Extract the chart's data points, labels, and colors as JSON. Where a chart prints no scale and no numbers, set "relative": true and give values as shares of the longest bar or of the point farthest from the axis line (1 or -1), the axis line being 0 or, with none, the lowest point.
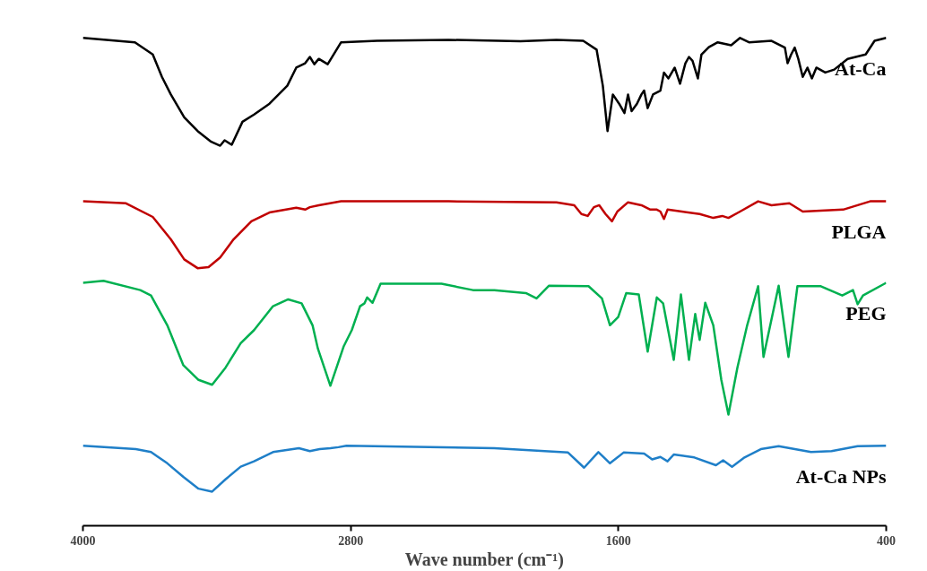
{
  "chart_data": {
    "type": "line",
    "relative": true,
    "xlabel": "Wave number (cm⁻¹)",
    "xlim": [
      4000,
      400
    ],
    "xticks": [
      4000,
      2800,
      1600,
      400
    ],
    "tick_labels": "x",
    "legend": false,
    "grid": false,
    "series": [
      {
        "name": "At-Ca",
        "color": "#000000",
        "x": [
          4000,
          3767,
          3687,
          3646,
          3606,
          3546,
          3486,
          3425,
          3385,
          3365,
          3333,
          3285,
          3233,
          3164,
          3084,
          3044,
          3004,
          2983,
          2963,
          2943,
          2903,
          2843,
          2682,
          2361,
          2039,
          1878,
          1758,
          1698,
          1670,
          1649,
          1625,
          1597,
          1573,
          1557,
          1541,
          1517,
          1497,
          1485,
          1469,
          1445,
          1412,
          1396,
          1376,
          1348,
          1324,
          1300,
          1284,
          1268,
          1244,
          1228,
          1195,
          1155,
          1095,
          1055,
          1015,
          914,
          854,
          842,
          826,
          810,
          794,
          774,
          753,
          733,
          713,
          673,
          633,
          573,
          492,
          452,
          400
        ],
        "values": [
          1.0,
          0.991,
          0.966,
          0.92,
          0.884,
          0.837,
          0.809,
          0.787,
          0.779,
          0.79,
          0.781,
          0.828,
          0.843,
          0.865,
          0.902,
          0.939,
          0.948,
          0.961,
          0.946,
          0.957,
          0.946,
          0.991,
          0.994,
          0.996,
          0.993,
          0.996,
          0.994,
          0.976,
          0.902,
          0.809,
          0.884,
          0.865,
          0.846,
          0.884,
          0.85,
          0.865,
          0.884,
          0.892,
          0.856,
          0.884,
          0.892,
          0.929,
          0.917,
          0.939,
          0.906,
          0.948,
          0.961,
          0.953,
          0.917,
          0.966,
          0.981,
          0.991,
          0.985,
          1.0,
          0.991,
          0.994,
          0.98,
          0.948,
          0.966,
          0.98,
          0.957,
          0.92,
          0.939,
          0.917,
          0.939,
          0.929,
          0.935,
          0.957,
          0.966,
          0.994,
          1.0
        ]
      },
      {
        "name": "PLGA",
        "color": "#c00000",
        "x": [
          4000,
          3807,
          3687,
          3606,
          3546,
          3486,
          3437,
          3385,
          3325,
          3245,
          3164,
          3044,
          3004,
          2983,
          2943,
          2843,
          2361,
          1878,
          1798,
          1766,
          1738,
          1710,
          1686,
          1658,
          1629,
          1605,
          1557,
          1497,
          1457,
          1428,
          1412,
          1396,
          1380,
          1316,
          1236,
          1175,
          1135,
          1107,
          1055,
          974,
          914,
          834,
          774,
          593,
          472,
          400
        ],
        "values": [
          0.665,
          0.661,
          0.633,
          0.587,
          0.546,
          0.528,
          0.53,
          0.55,
          0.587,
          0.624,
          0.642,
          0.652,
          0.648,
          0.653,
          0.657,
          0.665,
          0.665,
          0.663,
          0.657,
          0.639,
          0.635,
          0.653,
          0.657,
          0.639,
          0.624,
          0.644,
          0.663,
          0.657,
          0.648,
          0.648,
          0.644,
          0.629,
          0.648,
          0.644,
          0.639,
          0.631,
          0.635,
          0.631,
          0.644,
          0.665,
          0.657,
          0.661,
          0.644,
          0.648,
          0.665,
          0.665
        ]
      },
      {
        "name": "PEG",
        "color": "#00b050",
        "x": [
          4000,
          3908,
          3743,
          3695,
          3622,
          3550,
          3482,
          3421,
          3361,
          3293,
          3233,
          3148,
          3080,
          3020,
          2971,
          2947,
          2891,
          2831,
          2795,
          2758,
          2738,
          2726,
          2702,
          2666,
          2393,
          2252,
          2156,
          2015,
          1967,
          1911,
          1734,
          1674,
          1638,
          1601,
          1565,
          1509,
          1469,
          1428,
          1400,
          1352,
          1320,
          1284,
          1256,
          1236,
          1211,
          1175,
          1139,
          1107,
          1067,
          1023,
          974,
          950,
          882,
          838,
          798,
          693,
          597,
          549,
          528,
          504,
          400
        ],
        "values": [
          0.498,
          0.502,
          0.483,
          0.472,
          0.411,
          0.329,
          0.299,
          0.289,
          0.324,
          0.374,
          0.401,
          0.45,
          0.464,
          0.456,
          0.411,
          0.363,
          0.287,
          0.368,
          0.401,
          0.45,
          0.456,
          0.468,
          0.457,
          0.496,
          0.496,
          0.483,
          0.483,
          0.477,
          0.466,
          0.492,
          0.491,
          0.466,
          0.411,
          0.428,
          0.477,
          0.474,
          0.357,
          0.468,
          0.456,
          0.34,
          0.474,
          0.34,
          0.434,
          0.381,
          0.457,
          0.411,
          0.299,
          0.228,
          0.324,
          0.411,
          0.491,
          0.346,
          0.492,
          0.346,
          0.491,
          0.491,
          0.472,
          0.483,
          0.454,
          0.472,
          0.498
        ]
      },
      {
        "name": "At-Ca NPs",
        "color": "#1f7fc8",
        "x": [
          4000,
          3763,
          3695,
          3622,
          3550,
          3482,
          3421,
          3361,
          3293,
          3233,
          3148,
          3032,
          2983,
          2939,
          2891,
          2855,
          2819,
          2156,
          1826,
          1754,
          1690,
          1638,
          1577,
          1485,
          1449,
          1412,
          1380,
          1352,
          1260,
          1163,
          1131,
          1091,
          1035,
          962,
          882,
          737,
          645,
          528,
          400
        ],
        "values": [
          0.164,
          0.157,
          0.151,
          0.128,
          0.1,
          0.076,
          0.07,
          0.095,
          0.121,
          0.132,
          0.151,
          0.159,
          0.153,
          0.157,
          0.159,
          0.161,
          0.164,
          0.159,
          0.15,
          0.119,
          0.151,
          0.128,
          0.15,
          0.148,
          0.136,
          0.141,
          0.132,
          0.146,
          0.14,
          0.124,
          0.134,
          0.121,
          0.14,
          0.157,
          0.163,
          0.151,
          0.153,
          0.163,
          0.164
        ]
      }
    ]
  }
}
